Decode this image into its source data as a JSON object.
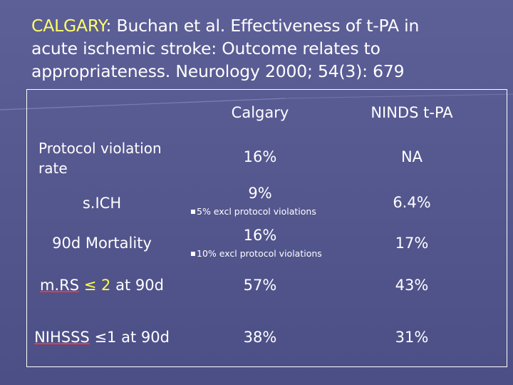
{
  "title": {
    "city": "CALGARY",
    "rest_line1": ": Buchan et al. Effectiveness of t-PA in",
    "line2": "acute ischemic stroke: Outcome relates to",
    "line3": "appropriateness. Neurology 2000; 54(3): 679"
  },
  "table": {
    "headers": {
      "col1": "Calgary",
      "col2": "NINDS t-PA"
    },
    "rows": [
      {
        "label_line1": "Protocol violation",
        "label_line2": "rate",
        "col1": "16%",
        "col2": "NA"
      },
      {
        "label": "s.ICH",
        "col1": "9%",
        "col1_note": "5% excl protocol violations",
        "col2": "6.4%"
      },
      {
        "label": "90d Mortality",
        "col1": "16%",
        "col1_note": "10% excl protocol violations",
        "col2": "17%"
      },
      {
        "label_abbr": "m.RS",
        "label_sym": "≤ 2",
        "label_rest": "at 90d",
        "col1": "57%",
        "col2": "43%"
      },
      {
        "label_abbr": "NIHSSS",
        "label_rest": "≤1 at 90d",
        "col1": "38%",
        "col2": "31%"
      }
    ]
  },
  "colors": {
    "background": "#5d5f97",
    "title_highlight": "#ffff66",
    "value_highlight": "#ffff44",
    "underline": "#ff3333"
  }
}
